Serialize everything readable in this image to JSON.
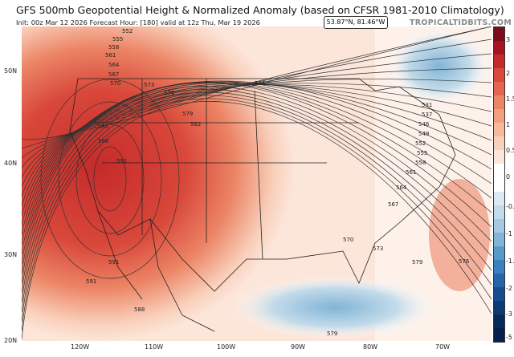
{
  "header": {
    "title": "GFS 500mb Geopotential Height & Normalized Anomaly (based on CFSR 1981-2010 Climatology)",
    "subtitle": "Init: 00z Mar 12 2026   Forecast Hour: [180]   valid at 12z Thu, Mar 19 2026",
    "brand": "TROPICALTIDBITS.COM",
    "cursor_readout": "53.87°N, 81.46°W"
  },
  "colorbar": {
    "labels": [
      "3",
      "2",
      "1.5",
      "1",
      "0.5",
      "0",
      "-0.5",
      "-1",
      "-1.5",
      "-2",
      "-3",
      "-5"
    ],
    "colors": [
      "#7a0c1e",
      "#a5141f",
      "#c52a2b",
      "#d9483a",
      "#e36650",
      "#ec8566",
      "#f1a07f",
      "#f6b99b",
      "#f9d0bb",
      "#fce5d9",
      "#ffffff",
      "#ffffff",
      "#dbe9f2",
      "#c2dbea",
      "#a4c9e1",
      "#82b4d6",
      "#5a9acb",
      "#3b80be",
      "#2764aa",
      "#174c91",
      "#0d3a73",
      "#082a5a",
      "#061e4a"
    ]
  },
  "axes": {
    "lon_labels": [
      "120W",
      "110W",
      "100W",
      "90W",
      "80W",
      "70W"
    ],
    "lat_labels": [
      "50N",
      "40N",
      "30N",
      "20N"
    ]
  },
  "contour_labels": [
    "552",
    "555",
    "558",
    "561",
    "564",
    "567",
    "570",
    "573",
    "576",
    "579",
    "582",
    "585",
    "588",
    "591",
    "591",
    "546",
    "531",
    "537",
    "546",
    "549",
    "552",
    "555",
    "558",
    "561",
    "564",
    "567",
    "570",
    "573",
    "576",
    "579",
    "579",
    "588",
    "591"
  ]
}
